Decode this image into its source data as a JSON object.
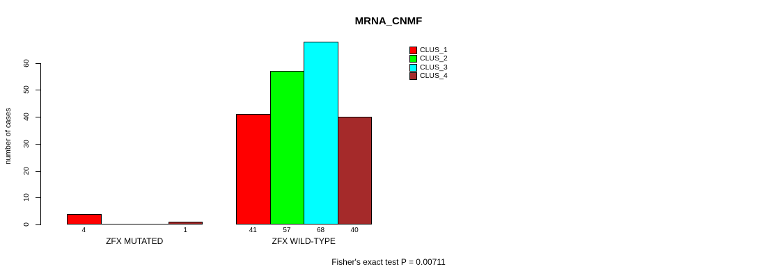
{
  "chart_data": {
    "type": "bar",
    "title": "MRNA_CNMF",
    "ylabel": "number of cases",
    "xlabel": "",
    "ylim": [
      0,
      60
    ],
    "yticks": [
      0,
      10,
      20,
      30,
      40,
      50,
      60
    ],
    "grid": false,
    "legend_position": "top-right",
    "series": [
      {
        "name": "CLUS_1",
        "color": "#ff0000"
      },
      {
        "name": "CLUS_2",
        "color": "#00ff00"
      },
      {
        "name": "CLUS_3",
        "color": "#00ffff"
      },
      {
        "name": "CLUS_4",
        "color": "#a52a2a"
      }
    ],
    "groups": [
      {
        "label": "ZFX MUTATED",
        "values": [
          4,
          0,
          0,
          1
        ],
        "bar_labels": [
          "4",
          "",
          "",
          "1"
        ]
      },
      {
        "label": "ZFX WILD-TYPE",
        "values": [
          41,
          57,
          68,
          40
        ],
        "bar_labels": [
          "41",
          "57",
          "68",
          "40"
        ]
      }
    ],
    "annotation": "Fisher's exact test P = 0.00711"
  }
}
